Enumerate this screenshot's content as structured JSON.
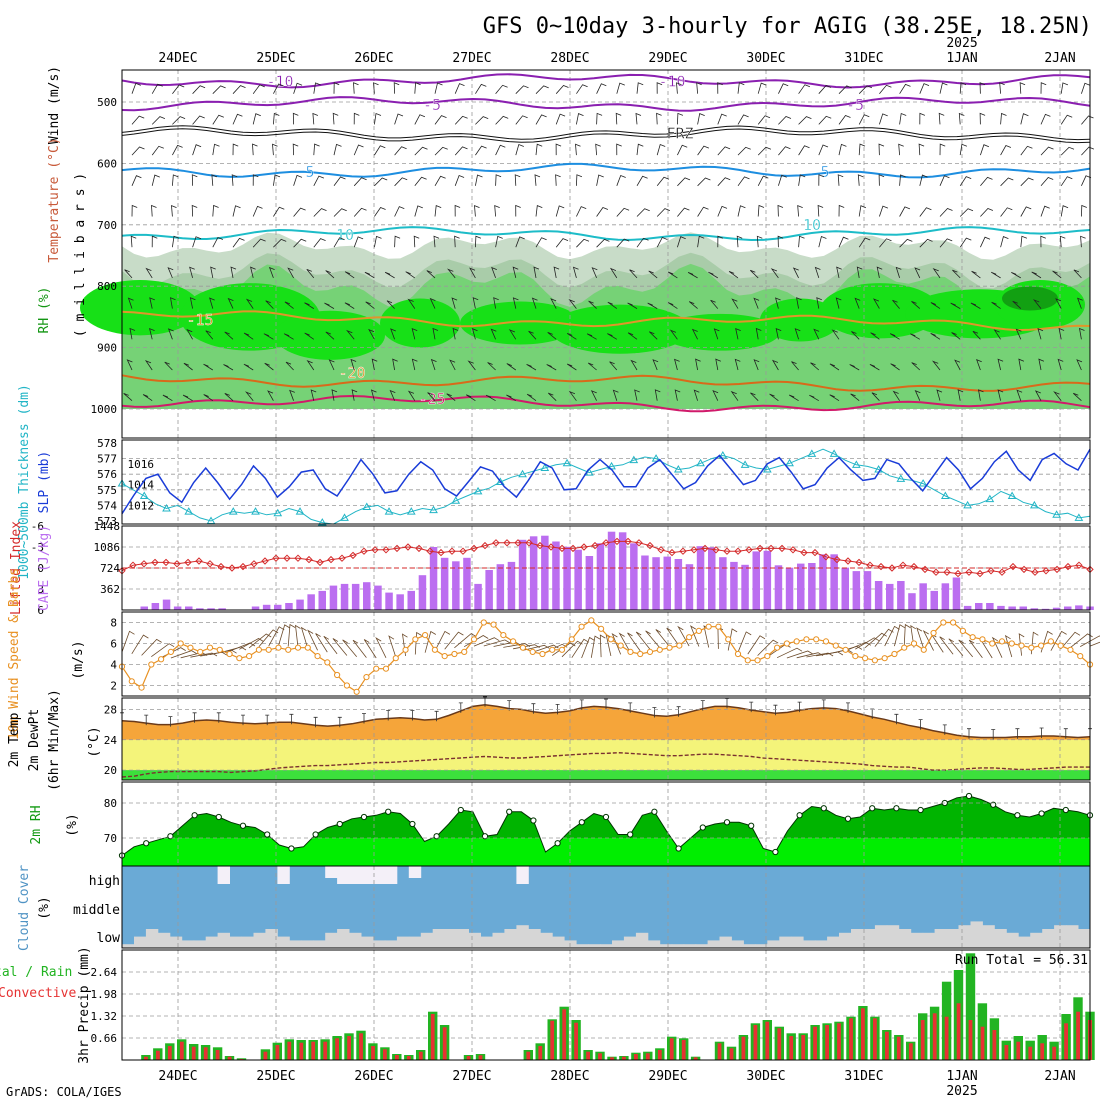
{
  "title": "GFS 0~10day 3-hourly for AGIG (38.25E, 18.25N)",
  "year_label": "2025",
  "credit": "GrADS: COLA/IGES",
  "run_total_text": "Run Total = 56.31",
  "dates": [
    "24DEC",
    "25DEC",
    "26DEC",
    "27DEC",
    "28DEC",
    "29DEC",
    "30DEC",
    "31DEC",
    "1JAN",
    "2JAN"
  ],
  "colors": {
    "rh_dark": "#12a012",
    "rh_mid": "#17e017",
    "rh_light": "#76d276",
    "rh_pale": "#c8dcc8",
    "slp": "#1a3cd8",
    "thickness": "#22b5c6",
    "cape": "#bb6ef0",
    "li": "#d42a2a",
    "wind": "#e89122",
    "temp_fill": "#f5a53a",
    "dew_fill": "#f4f47a",
    "rh2m_light": "#00ee00",
    "rh2m_dark": "#00b400",
    "cloud": "#6aaad6",
    "cloud_low": "#d6d6d6",
    "precip_total": "#22b422",
    "precip_conv": "#e63232"
  },
  "panel_labels": {
    "upper_wind": "Wind (m/s)",
    "upper_temp": "Temperature (°C)",
    "upper_rh": "RH (%)",
    "upper_mb": "( m i l l i b a r s )",
    "thickness": "1000~500mb Thickness (dm)",
    "slp": "SLP (mb)",
    "li": "Lifted Index",
    "cape": "CAPE (J/kg)",
    "wind": "10m Wind Speed & Barbs",
    "wind_unit": "(m/s)",
    "temp": "2m Temp",
    "dewpt": "2m DewPt",
    "temp_sub": "(6hr Min/Max)",
    "temp_unit": "(°C)",
    "rh": "2m RH",
    "rh_unit": "(%)",
    "cloud": "Cloud Cover",
    "cloud_unit": "(%)",
    "precip": "3hr Precip (mm)",
    "precip_total": "tal / Rain",
    "precip_conv": "Convective"
  },
  "cloud_levels": [
    "high",
    "middle",
    "low"
  ],
  "upper_contour_labels": [
    "-10",
    "-5",
    "FRZ",
    "5",
    "10",
    "-10",
    "-5",
    "5",
    "10",
    "-15",
    "-20",
    "-25"
  ],
  "chart_data": [
    {
      "type": "heatmap",
      "name": "upper",
      "y_ticks": [
        "500",
        "600",
        "700",
        "800",
        "900",
        "1000"
      ],
      "temperature_isotherms_C": [
        -10,
        -5,
        0,
        5,
        10,
        15,
        20,
        25
      ],
      "rh_levels_percent": [
        30,
        50,
        70,
        90
      ]
    },
    {
      "type": "line",
      "name": "slp_thickness",
      "slp_ticks": [
        "1012",
        "1014",
        "1016"
      ],
      "thickness_ticks": [
        "573",
        "574",
        "575",
        "576",
        "577",
        "578"
      ],
      "slp": [
        1011.2,
        1013.0,
        1014.6,
        1015.0,
        1013.2,
        1012.3,
        1014.2,
        1015.6,
        1014.2,
        1012.6,
        1014.0,
        1015.8,
        1014.6,
        1012.8,
        1013.8,
        1015.2,
        1015.4,
        1013.6,
        1012.9,
        1014.6,
        1016.4,
        1015.0,
        1013.2,
        1013.4,
        1015.0,
        1016.2,
        1015.4,
        1013.6,
        1012.9,
        1014.3,
        1015.7,
        1015.3,
        1013.8,
        1012.8,
        1014.4,
        1016.2,
        1015.6,
        1013.5,
        1013.6,
        1015.4,
        1016.4,
        1015.4,
        1013.8,
        1013.8,
        1015.6,
        1016.4,
        1015.0,
        1013.6,
        1014.2,
        1015.8,
        1016.8,
        1015.4,
        1014.0,
        1014.4,
        1016.0,
        1016.6,
        1015.2,
        1013.6,
        1014.0,
        1015.6,
        1016.6,
        1015.4,
        1014.4,
        1014.6,
        1016.4,
        1016.0,
        1014.6,
        1013.4,
        1015.0,
        1016.6,
        1015.4,
        1013.6,
        1014.6,
        1016.2,
        1017.2,
        1015.4,
        1014.4,
        1016.4,
        1017.0,
        1016.0,
        1015.4,
        1017.4
      ],
      "thickness": [
        575.4,
        575.0,
        574.6,
        574.1,
        573.8,
        574.0,
        573.6,
        573.2,
        573.0,
        573.4,
        573.6,
        573.5,
        573.6,
        573.4,
        573.5,
        573.8,
        573.6,
        573.1,
        572.9,
        572.8,
        573.2,
        573.6,
        573.9,
        574.0,
        573.6,
        573.4,
        573.6,
        573.8,
        573.7,
        573.9,
        574.3,
        574.6,
        574.9,
        575.1,
        575.5,
        575.8,
        576.0,
        576.2,
        576.4,
        576.6,
        576.7,
        576.4,
        576.1,
        576.3,
        576.5,
        576.6,
        576.9,
        577.1,
        577.0,
        576.6,
        576.3,
        576.4,
        576.7,
        577.0,
        577.2,
        577.0,
        576.6,
        576.4,
        576.3,
        576.5,
        576.7,
        577.0,
        577.3,
        577.6,
        577.3,
        576.9,
        576.6,
        576.5,
        576.3,
        575.9,
        575.7,
        575.6,
        575.4,
        575.0,
        574.6,
        574.3,
        574.0,
        574.1,
        574.4,
        574.9,
        574.6,
        574.2,
        574.0,
        573.6,
        573.4,
        573.5,
        573.2,
        573.3
      ]
    },
    {
      "type": "bar",
      "name": "cape_li",
      "cape_ticks": [
        "362",
        "724",
        "1086",
        "1448"
      ],
      "li_ticks": [
        "-6",
        "-3",
        "0",
        "3",
        "6"
      ],
      "cape": [
        0,
        0,
        60,
        120,
        180,
        60,
        60,
        30,
        30,
        30,
        0,
        0,
        60,
        90,
        90,
        120,
        180,
        270,
        330,
        420,
        450,
        450,
        480,
        420,
        300,
        270,
        330,
        600,
        1086,
        900,
        840,
        900,
        450,
        690,
        790,
        830,
        1210,
        1270,
        1280,
        1180,
        1090,
        1040,
        930,
        1150,
        1350,
        1340,
        1150,
        940,
        910,
        920,
        880,
        790,
        1100,
        1080,
        910,
        830,
        780,
        1010,
        1020,
        770,
        730,
        800,
        810,
        960,
        960,
        730,
        670,
        670,
        500,
        450,
        500,
        290,
        460,
        330,
        460,
        560,
        70,
        120,
        120,
        70,
        60,
        60,
        30,
        20,
        40,
        60,
        80,
        60
      ],
      "lifted_index": [
        0.4,
        -0.4,
        -0.6,
        -0.8,
        -0.8,
        -0.6,
        -0.8,
        -1.0,
        -0.6,
        -0.2,
        0.0,
        -0.2,
        -0.6,
        -1.0,
        -1.4,
        -1.4,
        -1.4,
        -1.2,
        -0.8,
        -1.2,
        -1.4,
        -1.8,
        -2.4,
        -2.6,
        -2.6,
        -2.8,
        -3.0,
        -2.8,
        -2.4,
        -2.2,
        -2.4,
        -2.4,
        -2.8,
        -3.2,
        -3.6,
        -3.6,
        -3.6,
        -3.6,
        -3.2,
        -3.0,
        -2.8,
        -2.8,
        -3.0,
        -3.2,
        -3.6,
        -3.8,
        -3.8,
        -3.6,
        -3.2,
        -2.6,
        -2.2,
        -2.4,
        -2.6,
        -2.8,
        -2.6,
        -2.4,
        -2.4,
        -2.6,
        -2.8,
        -2.8,
        -2.8,
        -2.6,
        -2.2,
        -2.2,
        -1.6,
        -1.2,
        -1.0,
        -0.8,
        -0.4,
        -0.2,
        0.0,
        -0.4,
        -0.2,
        0.2,
        0.6,
        0.6,
        0.8,
        0.6,
        0.8,
        0.4,
        0.6,
        -0.2,
        0.2,
        0.6,
        0.4,
        0.2,
        -0.2,
        -0.4,
        0.2
      ]
    },
    {
      "type": "line",
      "name": "wind10m",
      "y_ticks": [
        "2",
        "4",
        "6",
        "8"
      ],
      "speed": [
        3.8,
        2.4,
        1.8,
        4.0,
        4.5,
        5.2,
        6.0,
        5.6,
        5.2,
        5.6,
        5.4,
        5.0,
        4.6,
        4.8,
        5.4,
        5.4,
        5.6,
        5.4,
        5.6,
        5.6,
        4.8,
        4.2,
        3.0,
        2.0,
        1.4,
        2.8,
        3.6,
        3.6,
        4.6,
        5.4,
        6.4,
        6.8,
        5.4,
        4.8,
        5.0,
        5.2,
        6.4,
        8.0,
        7.8,
        6.8,
        6.2,
        5.6,
        5.2,
        5.0,
        5.4,
        5.4,
        6.4,
        7.6,
        8.2,
        7.4,
        6.4,
        5.8,
        5.2,
        5.0,
        5.2,
        5.4,
        5.6,
        5.8,
        6.6,
        7.2,
        7.6,
        7.6,
        6.4,
        5.0,
        4.4,
        4.4,
        4.8,
        5.6,
        6.0,
        6.2,
        6.4,
        6.4,
        6.2,
        5.8,
        5.4,
        4.8,
        4.6,
        4.4,
        4.6,
        5.0,
        5.6,
        6.0,
        5.4,
        7.0,
        8.0,
        8.0,
        7.2,
        6.6,
        6.4,
        6.0,
        6.2,
        6.0,
        5.8,
        5.6,
        5.8,
        6.2,
        5.8,
        5.4,
        4.8,
        4.0
      ]
    },
    {
      "type": "area",
      "name": "temp_dewpt",
      "y_ticks": [
        "20",
        "24",
        "28"
      ],
      "temp": [
        26.5,
        26.4,
        26.2,
        26.0,
        26.0,
        26.2,
        26.5,
        26.6,
        26.5,
        26.3,
        26.2,
        26.1,
        26.2,
        26.3,
        26.3,
        26.1,
        25.9,
        25.8,
        25.9,
        26.1,
        26.4,
        26.7,
        26.8,
        26.9,
        26.8,
        26.6,
        26.7,
        27.2,
        27.8,
        28.4,
        28.6,
        28.4,
        28.1,
        28.0,
        27.7,
        27.5,
        27.6,
        27.8,
        28.2,
        28.4,
        28.3,
        28.1,
        27.8,
        27.5,
        27.2,
        27.1,
        27.3,
        27.7,
        28.1,
        28.4,
        28.4,
        28.2,
        27.9,
        27.7,
        27.5,
        27.6,
        27.9,
        28.1,
        28.2,
        28.1,
        27.8,
        27.4,
        27.0,
        26.7,
        26.3,
        25.9,
        25.6,
        25.2,
        24.9,
        24.6,
        24.4,
        24.3,
        24.3,
        24.3,
        24.4,
        24.4,
        24.5,
        24.5,
        24.4,
        24.3,
        24.4
      ],
      "dewpt": [
        19.1,
        19.2,
        19.5,
        19.7,
        19.8,
        19.8,
        19.8,
        19.8,
        19.8,
        19.7,
        19.8,
        19.9,
        20.1,
        20.3,
        20.4,
        20.5,
        20.6,
        20.6,
        20.7,
        20.8,
        20.9,
        21.0,
        21.0,
        21.1,
        21.2,
        21.3,
        21.4,
        21.5,
        21.6,
        21.7,
        21.8,
        21.7,
        21.6,
        21.6,
        21.7,
        21.8,
        21.9,
        22.0,
        22.1,
        22.2,
        22.2,
        22.3,
        22.2,
        22.1,
        22.0,
        21.9,
        21.9,
        22.0,
        22.1,
        22.1,
        22.0,
        21.9,
        21.8,
        21.6,
        21.5,
        21.4,
        21.3,
        21.2,
        21.1,
        21.0,
        20.9,
        20.8,
        20.6,
        20.5,
        20.4,
        20.4,
        20.2,
        20.0,
        20.0,
        20.1,
        20.2,
        20.3,
        20.3,
        20.2,
        20.1,
        20.1,
        20.2,
        20.3,
        20.4,
        20.4,
        20.4
      ]
    },
    {
      "type": "area",
      "name": "rh2m",
      "y_ticks": [
        "70",
        "80"
      ],
      "rh": [
        65.0,
        67.5,
        68.5,
        69.5,
        70.5,
        73.5,
        76.5,
        77.0,
        76.0,
        74.5,
        73.5,
        73.0,
        71.0,
        68.0,
        67.0,
        67.5,
        71.0,
        73.0,
        74.0,
        75.5,
        76.0,
        76.5,
        77.5,
        77.0,
        74.0,
        69.0,
        70.5,
        74.0,
        78.0,
        77.5,
        70.5,
        71.0,
        77.5,
        77.5,
        75.0,
        66.0,
        68.5,
        72.0,
        74.5,
        77.0,
        76.0,
        71.0,
        71.0,
        76.5,
        77.5,
        72.0,
        67.0,
        70.0,
        73.0,
        74.0,
        74.5,
        74.5,
        73.5,
        67.0,
        66.0,
        72.0,
        76.5,
        79.0,
        78.5,
        76.5,
        75.5,
        76.0,
        78.5,
        78.0,
        78.5,
        78.0,
        78.0,
        79.0,
        80.0,
        81.5,
        82.0,
        81.0,
        79.5,
        77.5,
        76.5,
        76.0,
        77.0,
        78.5,
        78.0,
        77.5,
        76.5
      ]
    },
    {
      "type": "area",
      "name": "cloud_cover",
      "y_ticks": [
        "high",
        "middle",
        "low"
      ],
      "low_pct": [
        5,
        15,
        25,
        20,
        15,
        10,
        10,
        15,
        20,
        15,
        15,
        20,
        25,
        15,
        10,
        10,
        10,
        20,
        25,
        20,
        15,
        10,
        10,
        15,
        15,
        20,
        25,
        25,
        25,
        20,
        15,
        20,
        25,
        30,
        25,
        20,
        15,
        10,
        5,
        5,
        5,
        10,
        15,
        20,
        10,
        5,
        5,
        5,
        5,
        10,
        15,
        10,
        5,
        5,
        10,
        15,
        15,
        10,
        10,
        15,
        20,
        25,
        25,
        30,
        30,
        25,
        20,
        20,
        25,
        25,
        30,
        35,
        30,
        25,
        20,
        15,
        20,
        25,
        30,
        30,
        25
      ],
      "high_pct": [
        0,
        0,
        0,
        0,
        0,
        0,
        0,
        0,
        60,
        0,
        0,
        0,
        0,
        60,
        0,
        0,
        0,
        40,
        60,
        60,
        60,
        60,
        60,
        0,
        40,
        0,
        0,
        0,
        0,
        0,
        0,
        0,
        0,
        60,
        0,
        0,
        0,
        0,
        0,
        0,
        0,
        0,
        0,
        0,
        0,
        0,
        0,
        0,
        0,
        0,
        0,
        0,
        0,
        0,
        0,
        0,
        0,
        0,
        0,
        0,
        0,
        0,
        0,
        0,
        0,
        0,
        0,
        0,
        0,
        0,
        0,
        0,
        0,
        0,
        0,
        0,
        0,
        0,
        0,
        0,
        0
      ]
    },
    {
      "type": "bar",
      "name": "precip",
      "y_ticks": [
        "0.66",
        "1.32",
        "1.98",
        "2.64"
      ],
      "total": [
        0,
        0,
        0.15,
        0.35,
        0.5,
        0.62,
        0.48,
        0.45,
        0.38,
        0.12,
        0.05,
        0,
        0.32,
        0.52,
        0.62,
        0.6,
        0.6,
        0.62,
        0.72,
        0.8,
        0.88,
        0.5,
        0.38,
        0.18,
        0.15,
        0.3,
        1.45,
        1.05,
        0,
        0.15,
        0.18,
        0,
        0,
        0,
        0.3,
        0.5,
        1.22,
        1.6,
        1.2,
        0.3,
        0.25,
        0.1,
        0.12,
        0.22,
        0.25,
        0.35,
        0.7,
        0.65,
        0.1,
        0,
        0.55,
        0.4,
        0.75,
        1.1,
        1.2,
        1.0,
        0.8,
        0.8,
        1.05,
        1.1,
        1.15,
        1.3,
        1.62,
        1.3,
        0.9,
        0.75,
        0.55,
        1.4,
        1.6,
        2.35,
        2.7,
        3.2,
        1.7,
        1.25,
        0.58,
        0.72,
        0.58,
        0.75,
        0.55,
        1.38,
        1.88,
        1.45
      ],
      "convective": [
        0,
        0,
        0.1,
        0.28,
        0.42,
        0.55,
        0.4,
        0.38,
        0.3,
        0.1,
        0.03,
        0,
        0.25,
        0.45,
        0.55,
        0.52,
        0.55,
        0.55,
        0.65,
        0.72,
        0.8,
        0.42,
        0.32,
        0.15,
        0.12,
        0.25,
        1.38,
        0.98,
        0,
        0.12,
        0.14,
        0,
        0,
        0,
        0.25,
        0.42,
        1.18,
        1.52,
        1.12,
        0.25,
        0.2,
        0.08,
        0.1,
        0.18,
        0.2,
        0.3,
        0.65,
        0.6,
        0.08,
        0,
        0.5,
        0.35,
        0.7,
        1.05,
        1.15,
        0.95,
        0.72,
        0.75,
        1.0,
        1.05,
        1.1,
        1.25,
        1.55,
        1.25,
        0.85,
        0.7,
        0.5,
        1.2,
        1.4,
        1.3,
        1.7,
        1.2,
        1.0,
        0.9,
        0.45,
        0.55,
        0.4,
        0.5,
        0.4,
        1.1,
        1.45,
        1.2
      ]
    }
  ]
}
